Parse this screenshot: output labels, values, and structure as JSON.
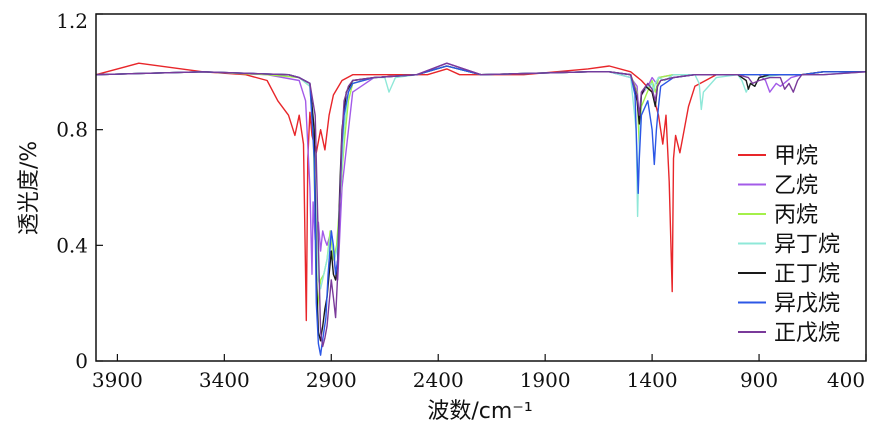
{
  "chart_data": {
    "type": "line",
    "xlabel": "波数/cm⁻¹",
    "ylabel": "透光度/%",
    "xlim": [
      4000,
      400
    ],
    "ylim": [
      0,
      1.2
    ],
    "x_reversed": true,
    "x_ticks": [
      {
        "value": 3900,
        "label": "3900"
      },
      {
        "value": 3400,
        "label": "3400"
      },
      {
        "value": 2900,
        "label": "2900"
      },
      {
        "value": 2400,
        "label": "2400"
      },
      {
        "value": 1900,
        "label": "1900"
      },
      {
        "value": 1400,
        "label": "1400"
      },
      {
        "value": 900,
        "label": "900"
      },
      {
        "value": 400,
        "label": "400"
      }
    ],
    "y_ticks": [
      {
        "value": 0,
        "label": "0"
      },
      {
        "value": 0.4,
        "label": "0.4"
      },
      {
        "value": 0.8,
        "label": "0.8"
      },
      {
        "value": 1.2,
        "label": "1.2"
      }
    ],
    "grid": false,
    "legend_position": "right",
    "series": [
      {
        "name": "甲烷",
        "color": "#e8262a",
        "x": [
          4000,
          3800,
          3500,
          3300,
          3200,
          3150,
          3100,
          3070,
          3050,
          3030,
          3017,
          3010,
          3000,
          2990,
          2970,
          2950,
          2930,
          2910,
          2890,
          2850,
          2800,
          2700,
          2450,
          2360,
          2300,
          2000,
          1700,
          1600,
          1500,
          1450,
          1400,
          1370,
          1350,
          1335,
          1320,
          1306,
          1300,
          1290,
          1270,
          1250,
          1230,
          1200,
          1100,
          1000,
          900,
          800,
          700,
          600,
          500,
          400
        ],
        "y": [
          0.99,
          1.03,
          1.0,
          0.99,
          0.97,
          0.9,
          0.85,
          0.78,
          0.85,
          0.75,
          0.14,
          0.7,
          0.86,
          0.78,
          0.72,
          0.8,
          0.73,
          0.85,
          0.92,
          0.97,
          0.99,
          0.99,
          0.99,
          1.01,
          0.99,
          0.99,
          1.01,
          1.02,
          1.0,
          0.97,
          0.93,
          0.85,
          0.75,
          0.85,
          0.62,
          0.24,
          0.7,
          0.78,
          0.72,
          0.8,
          0.88,
          0.95,
          0.99,
          0.99,
          0.99,
          0.99,
          0.99,
          1.0,
          1.0,
          1.0
        ]
      },
      {
        "name": "乙烷",
        "color": "#a35be8",
        "x": [
          4000,
          3500,
          3200,
          3050,
          3020,
          3000,
          2990,
          2985,
          2975,
          2960,
          2950,
          2940,
          2930,
          2920,
          2900,
          2890,
          2880,
          2870,
          2850,
          2800,
          2700,
          2500,
          2360,
          2200,
          1700,
          1600,
          1500,
          1470,
          1460,
          1450,
          1420,
          1400,
          1380,
          1370,
          1300,
          1100,
          1000,
          900,
          870,
          850,
          820,
          800,
          750,
          700,
          600,
          400
        ],
        "y": [
          0.99,
          1.0,
          0.99,
          0.97,
          0.9,
          0.6,
          0.3,
          0.55,
          0.42,
          0.48,
          0.38,
          0.45,
          0.42,
          0.4,
          0.45,
          0.38,
          0.3,
          0.28,
          0.6,
          0.93,
          0.98,
          0.99,
          1.03,
          0.99,
          1.0,
          1.0,
          0.98,
          0.95,
          0.82,
          0.92,
          0.95,
          0.98,
          0.96,
          0.98,
          0.99,
          0.99,
          0.99,
          0.99,
          0.97,
          0.93,
          0.96,
          0.95,
          0.98,
          0.99,
          0.99,
          1.0
        ]
      },
      {
        "name": "丙烷",
        "color": "#a4f04a",
        "x": [
          4000,
          3500,
          3200,
          3050,
          3000,
          2985,
          2975,
          2965,
          2950,
          2935,
          2920,
          2905,
          2890,
          2875,
          2860,
          2840,
          2820,
          2800,
          2700,
          2500,
          2360,
          2200,
          1700,
          1600,
          1500,
          1470,
          1460,
          1450,
          1400,
          1385,
          1375,
          1370,
          1300,
          1200,
          1100,
          1000,
          900,
          800,
          700,
          600,
          400
        ],
        "y": [
          0.99,
          1.0,
          0.99,
          0.98,
          0.95,
          0.8,
          0.5,
          0.18,
          0.28,
          0.3,
          0.35,
          0.45,
          0.35,
          0.4,
          0.55,
          0.75,
          0.9,
          0.96,
          0.98,
          0.99,
          1.02,
          0.99,
          1.0,
          1.0,
          0.99,
          0.93,
          0.74,
          0.88,
          0.97,
          0.93,
          0.96,
          0.98,
          0.99,
          0.99,
          0.99,
          0.99,
          0.99,
          0.99,
          0.99,
          1.0,
          1.0
        ]
      },
      {
        "name": "异丁烷",
        "color": "#8fe8d8",
        "x": [
          4000,
          3500,
          3100,
          3050,
          3000,
          2985,
          2975,
          2960,
          2950,
          2935,
          2920,
          2900,
          2885,
          2870,
          2860,
          2840,
          2820,
          2800,
          2700,
          2650,
          2630,
          2600,
          2500,
          2360,
          2200,
          1700,
          1600,
          1500,
          1475,
          1468,
          1460,
          1450,
          1400,
          1395,
          1385,
          1370,
          1340,
          1300,
          1200,
          1180,
          1170,
          1160,
          1100,
          1000,
          980,
          960,
          940,
          920,
          900,
          800,
          700,
          600,
          400
        ],
        "y": [
          0.99,
          1.0,
          0.99,
          0.98,
          0.95,
          0.85,
          0.6,
          0.28,
          0.25,
          0.3,
          0.35,
          0.45,
          0.35,
          0.4,
          0.55,
          0.8,
          0.93,
          0.97,
          0.98,
          0.98,
          0.93,
          0.98,
          0.99,
          1.02,
          0.99,
          1.0,
          1.0,
          0.98,
          0.8,
          0.5,
          0.75,
          0.93,
          0.96,
          0.93,
          0.96,
          0.98,
          0.97,
          0.99,
          0.99,
          0.96,
          0.87,
          0.93,
          0.98,
          0.99,
          0.97,
          0.93,
          0.96,
          0.95,
          0.98,
          0.99,
          0.99,
          0.99,
          1.0
        ]
      },
      {
        "name": "正丁烷",
        "color": "#1a1a1a",
        "x": [
          4000,
          3500,
          3100,
          3050,
          3000,
          2980,
          2970,
          2960,
          2950,
          2945,
          2940,
          2930,
          2920,
          2910,
          2900,
          2890,
          2880,
          2870,
          2860,
          2850,
          2830,
          2800,
          2700,
          2500,
          2360,
          2200,
          1700,
          1600,
          1500,
          1470,
          1460,
          1450,
          1430,
          1400,
          1385,
          1375,
          1360,
          1300,
          1200,
          1100,
          1000,
          960,
          950,
          940,
          920,
          900,
          850,
          800,
          750,
          700,
          600,
          400
        ],
        "y": [
          0.99,
          1.0,
          0.99,
          0.98,
          0.96,
          0.8,
          0.3,
          0.1,
          0.07,
          0.1,
          0.12,
          0.18,
          0.22,
          0.3,
          0.38,
          0.3,
          0.28,
          0.35,
          0.6,
          0.8,
          0.93,
          0.97,
          0.98,
          0.99,
          1.02,
          0.99,
          1.0,
          1.0,
          0.99,
          0.9,
          0.82,
          0.92,
          0.95,
          0.93,
          0.88,
          0.95,
          0.97,
          0.98,
          0.99,
          0.99,
          0.99,
          0.97,
          0.94,
          0.96,
          0.95,
          0.98,
          0.99,
          0.99,
          0.99,
          0.99,
          1.0,
          1.0
        ]
      },
      {
        "name": "异戊烷",
        "color": "#2c57e6",
        "x": [
          4000,
          3500,
          3100,
          3050,
          3000,
          2980,
          2970,
          2960,
          2950,
          2945,
          2935,
          2925,
          2915,
          2900,
          2890,
          2880,
          2870,
          2860,
          2850,
          2840,
          2820,
          2800,
          2700,
          2500,
          2360,
          2200,
          1700,
          1600,
          1500,
          1480,
          1470,
          1465,
          1460,
          1450,
          1420,
          1400,
          1390,
          1380,
          1370,
          1360,
          1300,
          1200,
          1100,
          1000,
          900,
          800,
          700,
          600,
          400
        ],
        "y": [
          0.99,
          1.0,
          0.99,
          0.98,
          0.96,
          0.7,
          0.2,
          0.06,
          0.02,
          0.05,
          0.1,
          0.15,
          0.3,
          0.45,
          0.4,
          0.3,
          0.35,
          0.55,
          0.75,
          0.85,
          0.93,
          0.96,
          0.98,
          0.99,
          1.02,
          0.99,
          1.0,
          1.0,
          0.99,
          0.92,
          0.7,
          0.58,
          0.7,
          0.85,
          0.9,
          0.8,
          0.68,
          0.8,
          0.88,
          0.95,
          0.98,
          0.99,
          0.99,
          0.99,
          0.99,
          0.99,
          0.99,
          1.0,
          1.0
        ]
      },
      {
        "name": "正戊烷",
        "color": "#7a3a9a",
        "x": [
          4000,
          3500,
          3100,
          3050,
          3000,
          2975,
          2960,
          2950,
          2940,
          2930,
          2920,
          2910,
          2900,
          2890,
          2880,
          2870,
          2860,
          2850,
          2840,
          2820,
          2800,
          2700,
          2500,
          2360,
          2200,
          1700,
          1600,
          1500,
          1470,
          1460,
          1450,
          1420,
          1400,
          1385,
          1375,
          1360,
          1300,
          1200,
          1100,
          1000,
          950,
          930,
          900,
          850,
          800,
          780,
          760,
          740,
          720,
          700,
          600,
          400
        ],
        "y": [
          0.99,
          1.0,
          0.99,
          0.98,
          0.96,
          0.85,
          0.4,
          0.1,
          0.05,
          0.08,
          0.12,
          0.2,
          0.28,
          0.22,
          0.15,
          0.3,
          0.55,
          0.78,
          0.9,
          0.95,
          0.97,
          0.98,
          0.99,
          1.03,
          0.99,
          1.0,
          1.0,
          0.99,
          0.92,
          0.85,
          0.93,
          0.96,
          0.94,
          0.9,
          0.95,
          0.97,
          0.98,
          0.99,
          0.99,
          0.99,
          0.98,
          0.96,
          0.97,
          0.98,
          0.98,
          0.94,
          0.96,
          0.93,
          0.97,
          0.99,
          0.99,
          1.0
        ]
      }
    ]
  }
}
